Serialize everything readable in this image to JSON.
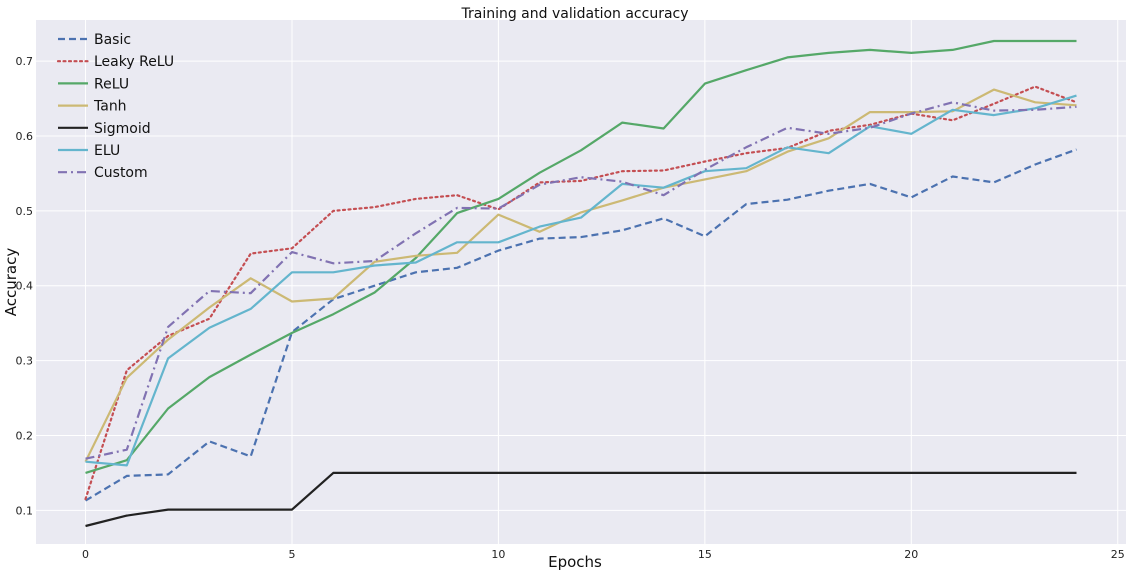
{
  "chart_data": {
    "type": "line",
    "title": "Training and validation accuracy",
    "xlabel": "Epochs",
    "ylabel": "Accuracy",
    "xlim": [
      -1.2,
      25.2
    ],
    "ylim": [
      0.055,
      0.755
    ],
    "xticks": [
      0,
      5,
      10,
      15,
      20,
      25
    ],
    "yticks": [
      0.1,
      0.2,
      0.3,
      0.4,
      0.5,
      0.6,
      0.7
    ],
    "grid": true,
    "legend_position": "top-left",
    "background": "#eaeaf2",
    "x": [
      0,
      1,
      2,
      3,
      4,
      5,
      6,
      7,
      8,
      9,
      10,
      11,
      12,
      13,
      14,
      15,
      16,
      17,
      18,
      19,
      20,
      21,
      22,
      23,
      24
    ],
    "series": [
      {
        "name": "Basic",
        "color": "#4c72b0",
        "dash": "dashed",
        "values": [
          0.113,
          0.146,
          0.148,
          0.192,
          0.172,
          0.338,
          0.382,
          0.4,
          0.418,
          0.424,
          0.447,
          0.463,
          0.465,
          0.474,
          0.49,
          0.466,
          0.509,
          0.515,
          0.527,
          0.536,
          0.518,
          0.546,
          0.538,
          0.562,
          0.582
        ]
      },
      {
        "name": "Leaky ReLU",
        "color": "#c44e52",
        "dash": "dotted",
        "values": [
          0.115,
          0.287,
          0.333,
          0.356,
          0.443,
          0.45,
          0.5,
          0.505,
          0.516,
          0.521,
          0.502,
          0.538,
          0.54,
          0.553,
          0.554,
          0.566,
          0.577,
          0.584,
          0.607,
          0.615,
          0.63,
          0.621,
          0.643,
          0.666,
          0.645
        ]
      },
      {
        "name": "ReLU",
        "color": "#55a868",
        "dash": "solid",
        "values": [
          0.15,
          0.167,
          0.236,
          0.278,
          0.308,
          0.337,
          0.362,
          0.391,
          0.437,
          0.497,
          0.516,
          0.551,
          0.581,
          0.618,
          0.61,
          0.67,
          0.688,
          0.705,
          0.711,
          0.715,
          0.711,
          0.715,
          0.727,
          0.727,
          0.727
        ]
      },
      {
        "name": "Tanh",
        "color": "#ccb974",
        "dash": "solid",
        "values": [
          0.165,
          0.277,
          0.328,
          0.371,
          0.41,
          0.379,
          0.383,
          0.432,
          0.44,
          0.444,
          0.495,
          0.472,
          0.498,
          0.514,
          0.531,
          0.542,
          0.553,
          0.579,
          0.597,
          0.632,
          0.632,
          0.633,
          0.662,
          0.645,
          0.641
        ]
      },
      {
        "name": "Sigmoid",
        "color": "#222222",
        "dash": "solid",
        "values": [
          0.079,
          0.093,
          0.101,
          0.101,
          0.101,
          0.101,
          0.15,
          0.15,
          0.15,
          0.15,
          0.15,
          0.15,
          0.15,
          0.15,
          0.15,
          0.15,
          0.15,
          0.15,
          0.15,
          0.15,
          0.15,
          0.15,
          0.15,
          0.15,
          0.15
        ]
      },
      {
        "name": "ELU",
        "color": "#64b5cd",
        "dash": "solid",
        "values": [
          0.165,
          0.16,
          0.303,
          0.344,
          0.369,
          0.418,
          0.418,
          0.427,
          0.431,
          0.458,
          0.458,
          0.479,
          0.491,
          0.536,
          0.531,
          0.553,
          0.557,
          0.585,
          0.577,
          0.613,
          0.603,
          0.635,
          0.628,
          0.637,
          0.654
        ]
      },
      {
        "name": "Custom",
        "color": "#8172b2",
        "dash": "dashdot",
        "values": [
          0.169,
          0.181,
          0.345,
          0.393,
          0.39,
          0.445,
          0.43,
          0.433,
          0.47,
          0.504,
          0.503,
          0.535,
          0.545,
          0.539,
          0.521,
          0.555,
          0.585,
          0.611,
          0.603,
          0.611,
          0.63,
          0.645,
          0.634,
          0.635,
          0.639
        ]
      }
    ]
  }
}
